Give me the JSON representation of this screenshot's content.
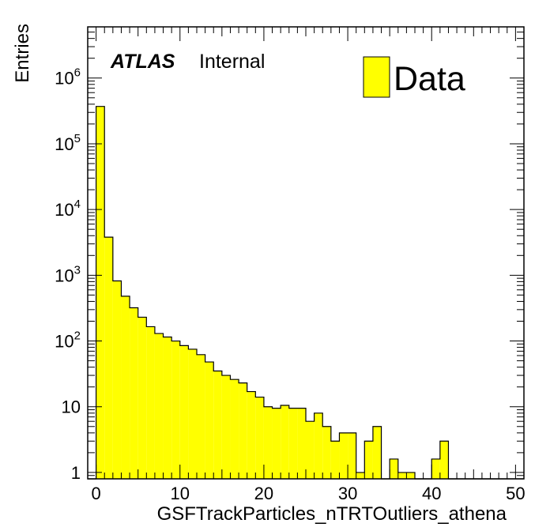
{
  "chart_data": {
    "type": "histogram",
    "title": "",
    "xlabel": "GSFTrackParticles_nTRTOutliers_athena",
    "ylabel": "Entries",
    "xlim": [
      -1,
      51
    ],
    "ylim": [
      0.8,
      6000000
    ],
    "yscale": "log",
    "grid": false,
    "legend_position": "top-right",
    "fill_color": "#ffff00",
    "line_color": "#000000",
    "bin_width": 1,
    "bin_edges_start": -1,
    "series": [
      {
        "name": "Data",
        "values": [
          0,
          370000,
          3800,
          820,
          480,
          320,
          230,
          165,
          130,
          115,
          100,
          85,
          75,
          62,
          48,
          35,
          30,
          26,
          23,
          17,
          14,
          10,
          9.5,
          10.5,
          9.5,
          9.5,
          6,
          8,
          5,
          3,
          4,
          4,
          1,
          3,
          5,
          0,
          1.6,
          1,
          1,
          0,
          0,
          1.6,
          3,
          0,
          0,
          0,
          0,
          0,
          0,
          0,
          0,
          0
        ]
      }
    ],
    "x_ticks": [
      0,
      10,
      20,
      30,
      40,
      50
    ],
    "y_ticks": [
      {
        "value": 1,
        "base": "1",
        "exp": ""
      },
      {
        "value": 10,
        "base": "10",
        "exp": ""
      },
      {
        "value": 100,
        "base": "10",
        "exp": "2"
      },
      {
        "value": 1000,
        "base": "10",
        "exp": "3"
      },
      {
        "value": 10000,
        "base": "10",
        "exp": "4"
      },
      {
        "value": 100000,
        "base": "10",
        "exp": "5"
      },
      {
        "value": 1000000,
        "base": "10",
        "exp": "6"
      }
    ]
  },
  "labels": {
    "atlas": "ATLAS",
    "internal": "Internal",
    "legend_entry": "Data"
  }
}
